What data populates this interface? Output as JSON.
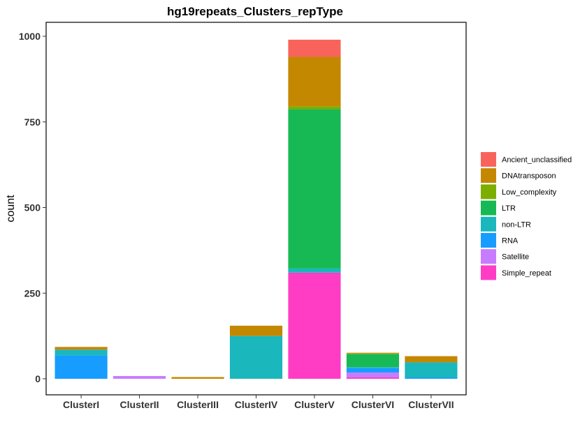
{
  "chart_data": {
    "type": "bar",
    "stacked": true,
    "title": "hg19repeats_Clusters_repType",
    "xlabel": "",
    "ylabel": "count",
    "ylim": [
      0,
      1030
    ],
    "yticks": [
      0,
      250,
      500,
      750,
      1000
    ],
    "categories": [
      "ClusterI",
      "ClusterII",
      "ClusterIII",
      "ClusterIV",
      "ClusterV",
      "ClusterVI",
      "ClusterVII"
    ],
    "legend_position": "right",
    "grid": false,
    "series": [
      {
        "name": "Simple_repeat",
        "color": "#FF3DC4",
        "values": [
          0,
          0,
          0,
          0,
          310,
          4,
          0
        ]
      },
      {
        "name": "Satellite",
        "color": "#C77CFF",
        "values": [
          0,
          8,
          0,
          0,
          0,
          14,
          0
        ]
      },
      {
        "name": "RNA",
        "color": "#169DFF",
        "values": [
          68,
          0,
          0,
          0,
          0,
          14,
          4
        ]
      },
      {
        "name": "non-LTR",
        "color": "#1AB7BD",
        "values": [
          17,
          0,
          0,
          125,
          12,
          2,
          44
        ]
      },
      {
        "name": "LTR",
        "color": "#17B954",
        "values": [
          0,
          0,
          0,
          0,
          465,
          38,
          0
        ]
      },
      {
        "name": "Low_complexity",
        "color": "#7CAE00",
        "values": [
          0,
          0,
          0,
          0,
          8,
          2,
          0
        ]
      },
      {
        "name": "DNAtransposon",
        "color": "#C48700",
        "values": [
          8,
          0,
          5,
          30,
          145,
          2,
          18
        ]
      },
      {
        "name": "Ancient_unclassified",
        "color": "#F8645C",
        "values": [
          0,
          0,
          0,
          0,
          50,
          0,
          0
        ]
      }
    ]
  }
}
